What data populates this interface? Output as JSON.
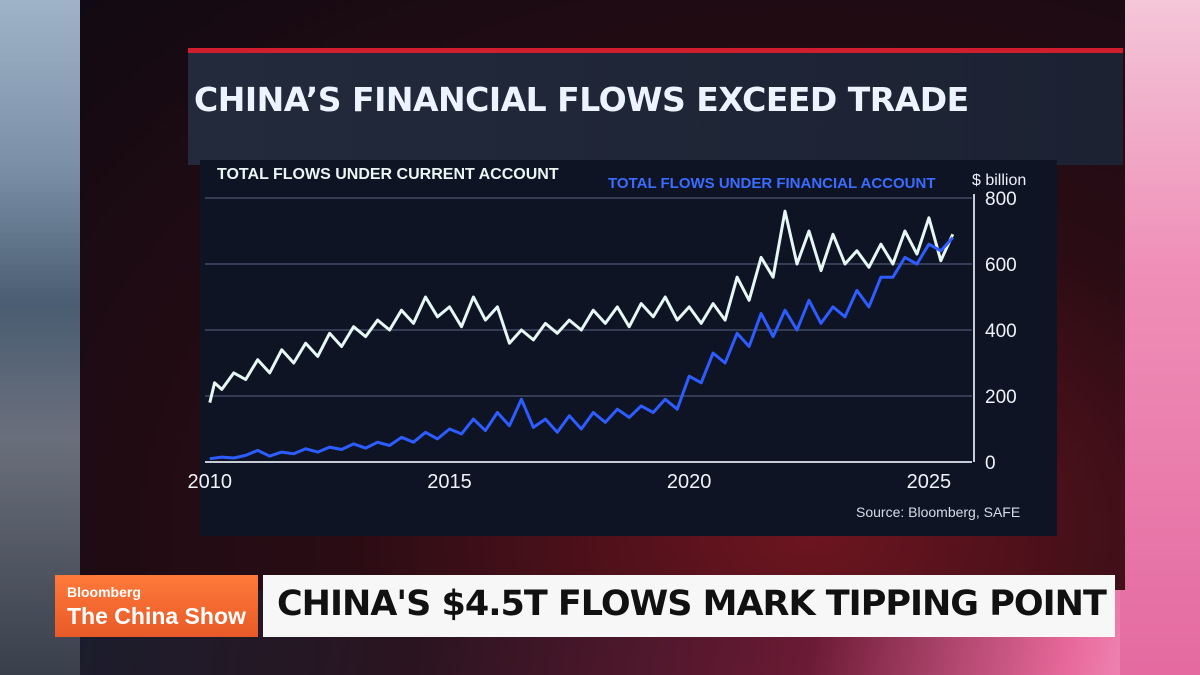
{
  "headline": "CHINA’S FINANCIAL FLOWS EXCEED TRADE",
  "lower_third": {
    "brand": "Bloomberg",
    "show": "The China Show",
    "ticker": "CHINA'S $4.5T FLOWS MARK TIPPING POINT"
  },
  "colors": {
    "current_account": "#e6f7f4",
    "financial_account": "#2d5cff",
    "accent_red": "#d11e2e",
    "brand_orange": "#ff6a2a"
  },
  "chart_data": {
    "type": "line",
    "title": "CHINA’S FINANCIAL FLOWS EXCEED TRADE",
    "unit": "$ billion",
    "xlabel": "",
    "ylabel": "",
    "ylim": [
      0,
      800
    ],
    "xlim": [
      2009.9,
      2025.9
    ],
    "x_ticks": [
      "2010",
      "2015",
      "2020",
      "2025"
    ],
    "y_ticks": [
      "0",
      "200",
      "400",
      "600",
      "800"
    ],
    "y_axis_side": "right",
    "grid": true,
    "source": "Source: Bloomberg, SAFE",
    "series": [
      {
        "name": "TOTAL FLOWS UNDER CURRENT ACCOUNT",
        "x": [
          2010.0,
          2010.1,
          2010.25,
          2010.5,
          2010.75,
          2011.0,
          2011.25,
          2011.5,
          2011.75,
          2012.0,
          2012.25,
          2012.5,
          2012.75,
          2013.0,
          2013.25,
          2013.5,
          2013.75,
          2014.0,
          2014.25,
          2014.5,
          2014.75,
          2015.0,
          2015.25,
          2015.5,
          2015.75,
          2016.0,
          2016.25,
          2016.5,
          2016.75,
          2017.0,
          2017.25,
          2017.5,
          2017.75,
          2018.0,
          2018.25,
          2018.5,
          2018.75,
          2019.0,
          2019.25,
          2019.5,
          2019.75,
          2020.0,
          2020.25,
          2020.5,
          2020.75,
          2021.0,
          2021.25,
          2021.5,
          2021.75,
          2022.0,
          2022.25,
          2022.5,
          2022.75,
          2023.0,
          2023.25,
          2023.5,
          2023.75,
          2024.0,
          2024.25,
          2024.5,
          2024.75,
          2025.0,
          2025.25,
          2025.5
        ],
        "values": [
          180,
          240,
          220,
          270,
          250,
          310,
          270,
          340,
          300,
          360,
          320,
          390,
          350,
          410,
          380,
          430,
          400,
          460,
          420,
          500,
          440,
          470,
          410,
          500,
          430,
          470,
          360,
          400,
          370,
          420,
          390,
          430,
          400,
          460,
          420,
          470,
          410,
          480,
          440,
          500,
          430,
          470,
          420,
          480,
          430,
          560,
          490,
          620,
          560,
          760,
          600,
          700,
          580,
          690,
          600,
          640,
          590,
          660,
          600,
          700,
          630,
          740,
          610,
          690
        ]
      },
      {
        "name": "TOTAL FLOWS UNDER FINANCIAL ACCOUNT",
        "x": [
          2010.0,
          2010.25,
          2010.5,
          2010.75,
          2011.0,
          2011.25,
          2011.5,
          2011.75,
          2012.0,
          2012.25,
          2012.5,
          2012.75,
          2013.0,
          2013.25,
          2013.5,
          2013.75,
          2014.0,
          2014.25,
          2014.5,
          2014.75,
          2015.0,
          2015.25,
          2015.5,
          2015.75,
          2016.0,
          2016.25,
          2016.5,
          2016.75,
          2017.0,
          2017.25,
          2017.5,
          2017.75,
          2018.0,
          2018.25,
          2018.5,
          2018.75,
          2019.0,
          2019.25,
          2019.5,
          2019.75,
          2020.0,
          2020.25,
          2020.5,
          2020.75,
          2021.0,
          2021.25,
          2021.5,
          2021.75,
          2022.0,
          2022.25,
          2022.5,
          2022.75,
          2023.0,
          2023.25,
          2023.5,
          2023.75,
          2024.0,
          2024.25,
          2024.5,
          2024.75,
          2025.0,
          2025.25,
          2025.5
        ],
        "values": [
          10,
          15,
          12,
          20,
          35,
          18,
          30,
          25,
          40,
          30,
          45,
          38,
          55,
          42,
          60,
          50,
          75,
          60,
          90,
          70,
          100,
          85,
          130,
          95,
          150,
          110,
          190,
          105,
          130,
          90,
          140,
          100,
          150,
          120,
          160,
          135,
          170,
          150,
          190,
          160,
          260,
          240,
          330,
          300,
          390,
          350,
          450,
          380,
          460,
          400,
          490,
          420,
          470,
          440,
          520,
          470,
          560,
          560,
          620,
          600,
          660,
          640,
          680
        ]
      }
    ]
  }
}
